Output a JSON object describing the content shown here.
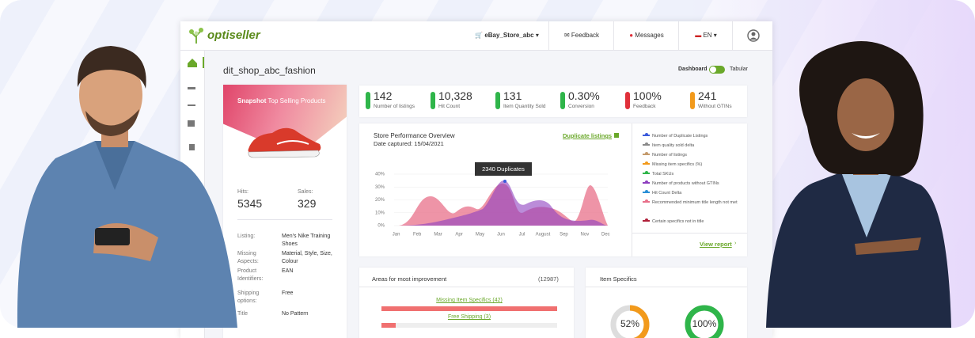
{
  "header": {
    "logo": "optiseller",
    "store": "eBay_Store_abc",
    "feedback": "Feedback",
    "messages": "Messages",
    "language": "EN"
  },
  "page": {
    "title": "dit_shop_abc_fashion",
    "view_dashboard": "Dashboard",
    "view_tabular": "Tabular"
  },
  "snapshot": {
    "title_bold": "Snapshot",
    "title": "Top Selling Products",
    "hits_label": "Hits:",
    "hits": "5345",
    "sales_label": "Sales:",
    "sales": "329",
    "details": [
      {
        "label": "Listing:",
        "value": "Men's Nike Training Shoes"
      },
      {
        "label": "Missing Aspects:",
        "value": "Material, Style, Size, Colour"
      },
      {
        "label": "Product Identifiers:",
        "value": "EAN"
      },
      {
        "label": "Shipping options:",
        "value": "Free"
      },
      {
        "label": "Title",
        "value": "No Pattern"
      }
    ]
  },
  "stats": [
    {
      "value": "142",
      "label": "Number of listings",
      "color": "#2fb54a"
    },
    {
      "value": "10,328",
      "label": "Hit Count",
      "color": "#2fb54a"
    },
    {
      "value": "131",
      "label": "Item Quantity Sold",
      "color": "#2fb54a"
    },
    {
      "value": "0.30%",
      "label": "Conversion",
      "color": "#2fb54a"
    },
    {
      "value": "100%",
      "label": "Feedback",
      "color": "#e0303a"
    },
    {
      "value": "241",
      "label": "Without GTINs",
      "color": "#f29a1c"
    }
  ],
  "performance": {
    "title": "Store Performance Overview",
    "date": "Date captured: 15/04/2021",
    "link": "Duplicate listings",
    "tooltip": "2340 Duplicates",
    "view_report": "View report",
    "yticks": [
      {
        "value": 40,
        "label": "40%"
      },
      {
        "value": 30,
        "label": "30%"
      },
      {
        "value": 20,
        "label": "20%"
      },
      {
        "value": 10,
        "label": "10%"
      },
      {
        "value": 0,
        "label": "0%"
      }
    ],
    "months": [
      "Jan",
      "Feb",
      "Mar",
      "Apr",
      "May",
      "Jun",
      "Jul",
      "August",
      "Sep",
      "Nov",
      "Dec"
    ],
    "legend": [
      {
        "name": "Number of Duplicate Listings",
        "color": "#3b5bdb"
      },
      {
        "name": "Item quality sold delta",
        "color": "#8a8a8a"
      },
      {
        "name": "Number of listings",
        "color": "#c49a6c"
      },
      {
        "name": "Missing item specifics (%)",
        "color": "#f29a1c"
      },
      {
        "name": "Total SKUs",
        "color": "#2fb54a"
      },
      {
        "name": "Number of products without GTINs",
        "color": "#8e3fbf"
      },
      {
        "name": "Hit Count Delta",
        "color": "#2b8fd6"
      },
      {
        "name": "Recommended minimum title length not met",
        "color": "#e8708a"
      },
      {
        "name": "Certain specifics not in title",
        "color": "#b0203a"
      }
    ]
  },
  "improvement": {
    "title": "Areas for most improvement",
    "count": "(12987)",
    "items": [
      "Missing Item Specifics (42)",
      "Free Shipping (3)"
    ]
  },
  "item_specifics": {
    "title": "Item Specifics",
    "gauges": [
      {
        "value": 52,
        "label": "52%",
        "color": "#f29a1c"
      },
      {
        "value": 100,
        "label": "100%",
        "color": "#2fb54a"
      }
    ]
  }
}
